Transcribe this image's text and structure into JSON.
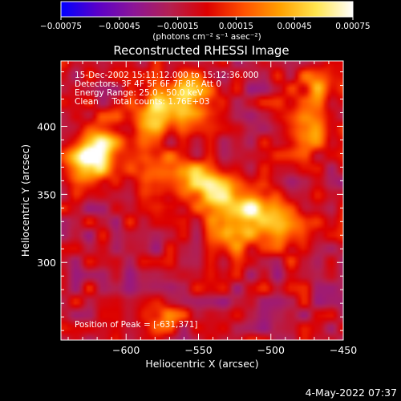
{
  "chart_data": {
    "type": "heatmap",
    "title": "Reconstructed RHESSI Image",
    "xlabel": "Heliocentric X (arcsec)",
    "ylabel": "Heliocentric Y (arcsec)",
    "xlim": [
      -645,
      -450
    ],
    "ylim": [
      243,
      448
    ],
    "x_ticks": [
      -600,
      -550,
      -500,
      -450
    ],
    "x_tick_labels": [
      "−600",
      "−550",
      "−500",
      "−450"
    ],
    "y_ticks": [
      300,
      350,
      400
    ],
    "y_tick_labels": [
      "300",
      "350",
      "400"
    ],
    "colorbar": {
      "min": -0.00075,
      "max": 0.00075,
      "ticks": [
        -0.00075,
        -0.00045,
        -0.00015,
        0.00015,
        0.00045,
        0.00075
      ],
      "tick_labels": [
        "−0.00075",
        "−0.00045",
        "−0.00015",
        "0.00015",
        "0.00045",
        "0.00075"
      ],
      "units_label": "(photons cm⁻² s⁻¹ asec⁻²)",
      "colormap": [
        "#0000ff",
        "#5a00c8",
        "#8c1696",
        "#b42050",
        "#dc0000",
        "#ff5000",
        "#ffa000",
        "#ffe650",
        "#ffffff"
      ]
    },
    "annotations": [
      "15-Dec-2002 15:11:12.000 to 15:12:36.000",
      "Detectors: 3F 4F 5F 6F 7F 8F, Att 0",
      "Energy Range: 25.0 - 50.0 keV",
      "Clean     Total counts: 1.76E+03"
    ],
    "peak_label": "Position of Peak = [-631,371]",
    "peak_position": [
      -631,
      371
    ],
    "bright_regions": [
      {
        "x": -628,
        "y": 371,
        "value": 0.00075
      },
      {
        "x": -618,
        "y": 388,
        "value": 0.0005
      },
      {
        "x": -580,
        "y": 408,
        "value": 0.00068
      },
      {
        "x": -555,
        "y": 422,
        "value": 0.00062
      },
      {
        "x": -580,
        "y": 365,
        "value": 0.00045
      },
      {
        "x": -555,
        "y": 360,
        "value": 0.0005
      },
      {
        "x": -535,
        "y": 348,
        "value": 0.00058
      },
      {
        "x": -510,
        "y": 340,
        "value": 0.0006
      },
      {
        "x": -490,
        "y": 325,
        "value": 0.00052
      },
      {
        "x": -525,
        "y": 323,
        "value": 0.0005
      },
      {
        "x": -475,
        "y": 395,
        "value": 0.00042
      },
      {
        "x": -468,
        "y": 432,
        "value": 0.0004
      },
      {
        "x": -575,
        "y": 262,
        "value": 0.0003
      }
    ],
    "background_level": -0.0001
  },
  "footer": {
    "timestamp": "4-May-2022 07:37"
  }
}
